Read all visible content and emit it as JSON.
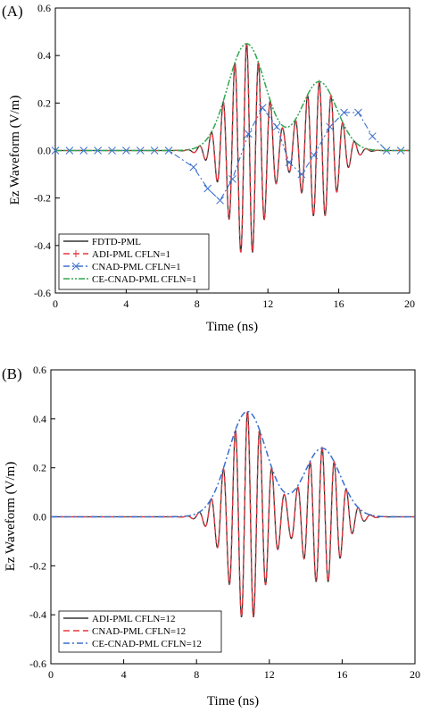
{
  "chart_data": [
    {
      "type": "line",
      "panel_label": "(A)",
      "xlabel": "Time (ns)",
      "ylabel": "Ez Waveform (V/m)",
      "xlim": [
        0,
        20
      ],
      "ylim": [
        -0.6,
        0.6
      ],
      "xticks": [
        0,
        4,
        8,
        12,
        16,
        20
      ],
      "yticks": [
        0.6,
        0.4,
        0.2,
        0.0,
        -0.2,
        -0.4,
        -0.6
      ],
      "ytick_labels": [
        "0.6",
        "0.4",
        "0.2",
        "0.0",
        "-0.2",
        "-0.4",
        "-0.6"
      ],
      "grid": false,
      "legend_position": "bottom-left",
      "signal": {
        "packets": [
          {
            "center_ns": 10.8,
            "width_ns": 1.5,
            "amplitude": 0.45
          },
          {
            "center_ns": 14.9,
            "width_ns": 1.4,
            "amplitude": 0.29
          }
        ],
        "carrier_period_ns": 0.667,
        "envelope_peaks": [
          {
            "x": 10.8,
            "y": 0.45
          },
          {
            "x": 14.9,
            "y": 0.29
          }
        ]
      },
      "series": [
        {
          "name": "FDTD-PML",
          "style": "solid",
          "color": "#333333",
          "kind": "waveform"
        },
        {
          "name": "ADI-PML CFLN=1",
          "style": "dashed",
          "color": "#e8373f",
          "kind": "waveform",
          "marker": "plus"
        },
        {
          "name": "CNAD-PML CFLN=1",
          "style": "dashdot",
          "color": "#3b6fcf",
          "kind": "sampled",
          "marker": "x",
          "points": [
            [
              0,
              0
            ],
            [
              0.8,
              0
            ],
            [
              1.6,
              0
            ],
            [
              2.4,
              0
            ],
            [
              3.2,
              0
            ],
            [
              4.0,
              0
            ],
            [
              4.8,
              0
            ],
            [
              5.6,
              0
            ],
            [
              6.4,
              0
            ],
            [
              7.8,
              -0.07
            ],
            [
              8.6,
              -0.16
            ],
            [
              9.3,
              -0.21
            ],
            [
              10.0,
              -0.12
            ],
            [
              10.9,
              0.07
            ],
            [
              11.7,
              0.18
            ],
            [
              12.5,
              0.1
            ],
            [
              13.2,
              -0.05
            ],
            [
              13.9,
              -0.1
            ],
            [
              14.6,
              -0.02
            ],
            [
              15.5,
              0.1
            ],
            [
              16.3,
              0.16
            ],
            [
              17.1,
              0.16
            ],
            [
              17.9,
              0.06
            ],
            [
              18.7,
              0.0
            ],
            [
              19.5,
              0.0
            ]
          ]
        },
        {
          "name": "CE-CNAD-PML CFLN=1",
          "style": "dashdotdot",
          "color": "#2fa84f",
          "kind": "envelope"
        }
      ]
    },
    {
      "type": "line",
      "panel_label": "(B)",
      "xlabel": "Time (ns)",
      "ylabel": "Ez Waveform (V/m)",
      "xlim": [
        0,
        20
      ],
      "ylim": [
        -0.6,
        0.6
      ],
      "xticks": [
        0,
        4,
        8,
        12,
        16,
        20
      ],
      "yticks": [
        0.6,
        0.4,
        0.2,
        0.0,
        -0.2,
        -0.4,
        -0.6
      ],
      "ytick_labels": [
        "0.6",
        "0.4",
        "0.2",
        "0.0",
        "-0.2",
        "-0.4",
        "-0.6"
      ],
      "grid": false,
      "legend_position": "bottom-left",
      "signal": {
        "packets": [
          {
            "center_ns": 10.8,
            "width_ns": 1.5,
            "amplitude": 0.43
          },
          {
            "center_ns": 14.9,
            "width_ns": 1.4,
            "amplitude": 0.28
          }
        ],
        "carrier_period_ns": 0.667,
        "envelope_peaks": [
          {
            "x": 10.8,
            "y": 0.43
          },
          {
            "x": 14.9,
            "y": 0.28
          }
        ]
      },
      "series": [
        {
          "name": "ADI-PML CFLN=12",
          "style": "solid",
          "color": "#333333",
          "kind": "waveform"
        },
        {
          "name": "CNAD-PML CFLN=12",
          "style": "dashed",
          "color": "#e8373f",
          "kind": "waveform"
        },
        {
          "name": "CE-CNAD-PML CFLN=12",
          "style": "dashdot",
          "color": "#3b6fcf",
          "kind": "envelope"
        }
      ]
    }
  ]
}
